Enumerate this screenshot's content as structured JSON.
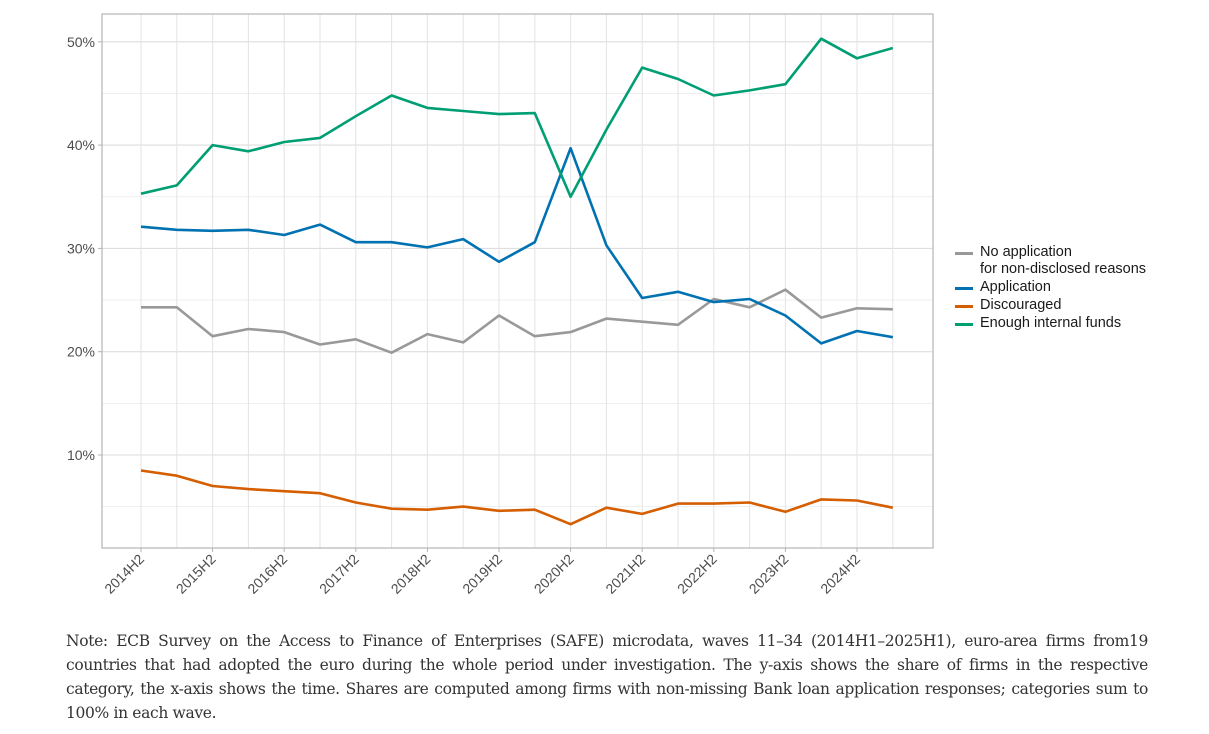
{
  "chart_data": {
    "type": "line",
    "title": "",
    "xlabel": "",
    "ylabel": "",
    "x": [
      "2014H2",
      "2015H1",
      "2015H2",
      "2016H1",
      "2016H2",
      "2017H1",
      "2017H2",
      "2018H1",
      "2018H2",
      "2019H1",
      "2019H2",
      "2020H1",
      "2020H2",
      "2021H1",
      "2021H2",
      "2022H1",
      "2022H2",
      "2023H1",
      "2023H2",
      "2024H1",
      "2024H2",
      "2025H1"
    ],
    "x_tick_labels": [
      "2014H2",
      "2015H2",
      "2016H2",
      "2017H2",
      "2018H2",
      "2019H2",
      "2020H2",
      "2021H2",
      "2022H2",
      "2023H2",
      "2024H2"
    ],
    "y_ticks": [
      10,
      20,
      30,
      40,
      50
    ],
    "y_tick_labels": [
      "10%",
      "20%",
      "30%",
      "40%",
      "50%"
    ],
    "ylim": [
      1.2,
      52.8
    ],
    "grid": true,
    "legend_position": "right",
    "series": [
      {
        "name": "No application\nfor non-disclosed reasons",
        "color": "#999999",
        "values": [
          24.3,
          24.3,
          21.5,
          22.2,
          21.9,
          20.7,
          21.2,
          19.9,
          21.7,
          20.9,
          23.5,
          21.5,
          21.9,
          23.2,
          22.9,
          22.6,
          25.1,
          24.3,
          26.0,
          23.3,
          24.2,
          24.1
        ]
      },
      {
        "name": "Application",
        "color": "#0072b2",
        "values": [
          32.1,
          31.8,
          31.7,
          31.8,
          31.3,
          32.3,
          30.6,
          30.6,
          30.1,
          30.9,
          28.7,
          30.6,
          39.7,
          30.3,
          25.2,
          25.8,
          24.8,
          25.1,
          23.5,
          20.8,
          22.0,
          21.4
        ]
      },
      {
        "name": "Discouraged",
        "color": "#d55e00",
        "values": [
          8.5,
          8.0,
          7.0,
          6.7,
          6.5,
          6.3,
          5.4,
          4.8,
          4.7,
          5.0,
          4.6,
          4.7,
          3.3,
          4.9,
          4.3,
          5.3,
          5.3,
          5.4,
          4.5,
          5.7,
          5.6,
          4.9
        ]
      },
      {
        "name": "Enough internal funds",
        "color": "#009e73",
        "values": [
          35.3,
          36.1,
          40.0,
          39.4,
          40.3,
          40.7,
          42.8,
          44.8,
          43.6,
          43.3,
          43.0,
          43.1,
          35.0,
          41.5,
          47.5,
          46.4,
          44.8,
          45.3,
          45.9,
          50.3,
          48.4,
          49.4
        ]
      }
    ]
  },
  "note": "Note: ECB Survey on the Access to Finance of Enterprises (SAFE) microdata, waves 11–34 (2014H1–2025H1), euro-area firms from19 countries that had adopted the euro during the whole period under investigation. The y-axis shows the share of firms in the respective category, the x-axis shows the time. Shares are computed among firms with non-missing Bank loan application responses; categories sum to 100% in each wave."
}
